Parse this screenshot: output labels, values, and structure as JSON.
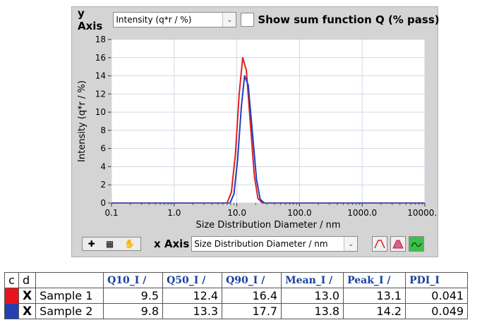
{
  "y_axis_control": {
    "label": "y Axis",
    "selected": "Intensity (q*r / %)",
    "show_sum_label": "Show sum function Q (% pass)"
  },
  "x_axis_control": {
    "label": "x Axis",
    "selected": "Size Distribution Diameter / nm"
  },
  "toolbar_icons": [
    "zoom-pan-icon",
    "zoom-box-icon",
    "hand-icon"
  ],
  "mode_buttons": [
    "peak-outline-icon",
    "peak-filled-icon",
    "curve-icon"
  ],
  "chart_data": {
    "type": "line",
    "ylabel": "Intensity (q*r / %)",
    "xlabel": "Size Distribution Diameter / nm",
    "x_scale": "log",
    "xlim": [
      0.1,
      10000
    ],
    "ylim": [
      0,
      18
    ],
    "x_ticks": [
      "0.1",
      "1.0",
      "10.0",
      "100.0",
      "1000.0",
      "10000.0"
    ],
    "y_ticks": [
      "0",
      "2",
      "4",
      "6",
      "8",
      "10",
      "12",
      "14",
      "16",
      "18"
    ],
    "grid": true,
    "series": [
      {
        "color": "#e02020",
        "x": [
          7.0,
          8.2,
          9.5,
          10.9,
          12.4,
          14.2,
          16.4,
          19.0,
          21.7,
          25.5
        ],
        "y": [
          0,
          1.2,
          5.4,
          12.0,
          16.0,
          14.6,
          8.8,
          3.0,
          0.5,
          0
        ]
      },
      {
        "color": "#2040c0",
        "x": [
          7.8,
          9.0,
          10.3,
          11.8,
          13.3,
          15.2,
          17.7,
          20.6,
          23.6,
          27.5
        ],
        "y": [
          0,
          1.0,
          4.8,
          10.6,
          14.0,
          13.0,
          7.8,
          2.6,
          0.4,
          0
        ]
      }
    ]
  },
  "table": {
    "headers": [
      "c",
      "d",
      "",
      "Q10_I /",
      "Q50_I /",
      "Q90_I /",
      "Mean_I /",
      "Peak_I /",
      "PDI_I"
    ],
    "rows": [
      {
        "color": "#e8141c",
        "mark": "X",
        "name": "Sample 1",
        "values": [
          "9.5",
          "12.4",
          "16.4",
          "13.0",
          "13.1",
          "0.041"
        ]
      },
      {
        "color": "#2440b0",
        "mark": "X",
        "name": "Sample 2",
        "values": [
          "9.8",
          "13.3",
          "17.7",
          "13.8",
          "14.2",
          "0.049"
        ]
      }
    ]
  }
}
